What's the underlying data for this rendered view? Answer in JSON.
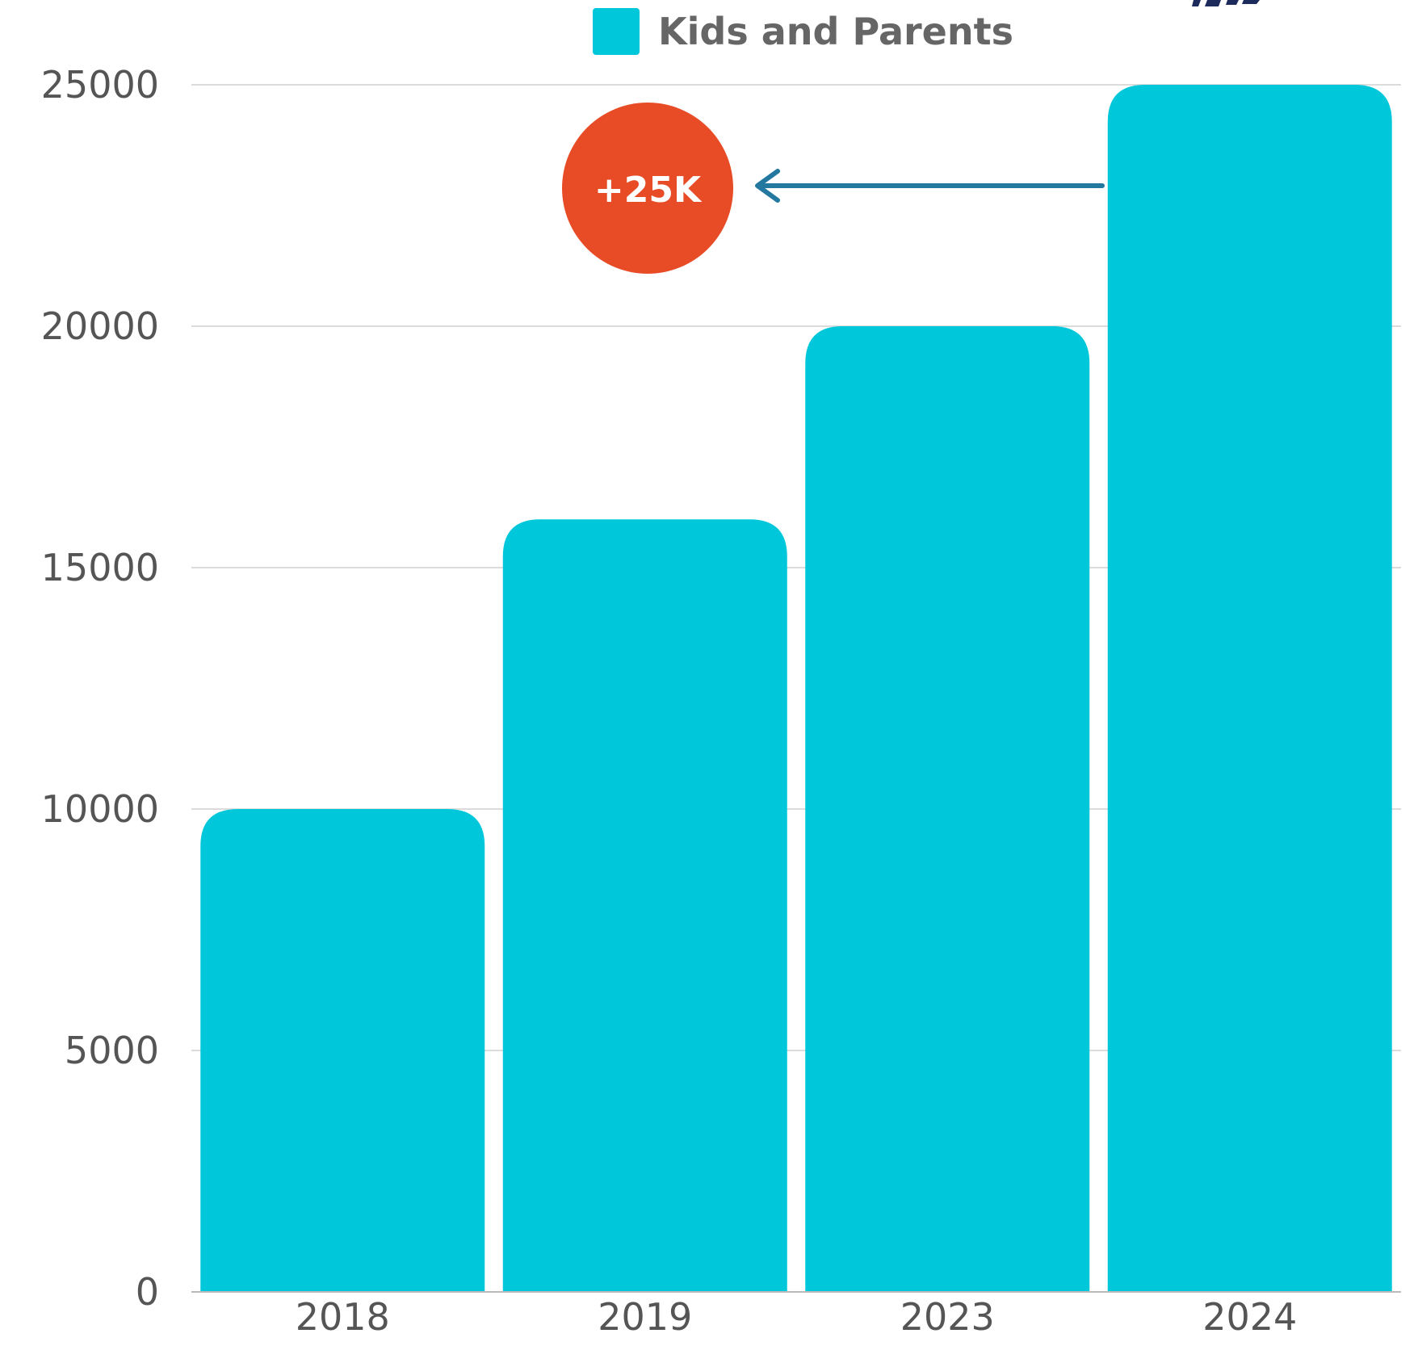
{
  "chart_data": {
    "type": "bar",
    "categories": [
      "2018",
      "2019",
      "2023",
      "2024"
    ],
    "series": [
      {
        "name": "Kids and Parents",
        "values": [
          10000,
          16000,
          20000,
          25000
        ],
        "color": "#00C8DA"
      }
    ],
    "ylim": [
      0,
      25000
    ],
    "yticks": [
      0,
      5000,
      10000,
      15000,
      20000,
      25000
    ],
    "grid": true,
    "legend": "top-center",
    "annotation": {
      "label": "+25K",
      "color": "#E84C27",
      "arrow_color": "#2378A0",
      "points_from_category": "2024"
    }
  }
}
